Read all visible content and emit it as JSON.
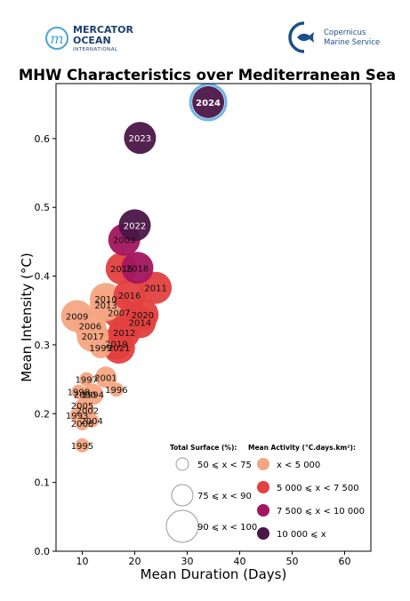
{
  "logos": {
    "left": {
      "line1": "MERCATOR",
      "line2": "OCEAN",
      "line3": "INTERNATIONAL"
    },
    "right": {
      "line1": "Copernicus",
      "line2": "Marine Service"
    }
  },
  "colors": {
    "activity_lt5000": "#f4a582",
    "activity_5000_7500": "#e3403f",
    "activity_7500_10000": "#a3155f",
    "activity_ge10000": "#4b1648",
    "highlight_ring": "#6fb7e8"
  },
  "chart_data": {
    "type": "scatter",
    "title": "MHW Characteristics over Mediterranean Sea",
    "xlabel": "Mean Duration (Days)",
    "ylabel": "Mean Intensity (°C)",
    "xlim": [
      5,
      65
    ],
    "ylim": [
      0.0,
      0.68
    ],
    "xticks": [
      "10",
      "20",
      "30",
      "40",
      "50",
      "60"
    ],
    "yticks": [
      "0.0",
      "0.1",
      "0.2",
      "0.3",
      "0.4",
      "0.5",
      "0.6"
    ],
    "grid": false,
    "legend_size": {
      "title": "Total Surface (%):",
      "entries": [
        {
          "label": "50 ⩽ x < 75",
          "surface_class": 1
        },
        {
          "label": "75 ⩽ x < 90",
          "surface_class": 2
        },
        {
          "label": "90 ⩽ x < 100",
          "surface_class": 3
        }
      ]
    },
    "legend_color": {
      "title": "Mean Activity (°C.days.km²):",
      "entries": [
        {
          "label": "x < 5 000",
          "activity_class": 1
        },
        {
          "label": "5 000 ⩽ x < 7 500",
          "activity_class": 2
        },
        {
          "label": "7 500 ⩽ x < 10 000",
          "activity_class": 3
        },
        {
          "label": "10 000 ⩽ x",
          "activity_class": 4
        }
      ]
    },
    "points": [
      {
        "year": "1993",
        "x": 9.0,
        "y": 0.198,
        "surface_class": 1,
        "activity_class": 1
      },
      {
        "year": "1994",
        "x": 12.0,
        "y": 0.228,
        "surface_class": 2,
        "activity_class": 1
      },
      {
        "year": "1995",
        "x": 10.0,
        "y": 0.154,
        "surface_class": 1,
        "activity_class": 1
      },
      {
        "year": "1996",
        "x": 16.5,
        "y": 0.235,
        "surface_class": 1,
        "activity_class": 1
      },
      {
        "year": "1997",
        "x": 10.8,
        "y": 0.25,
        "surface_class": 1,
        "activity_class": 1
      },
      {
        "year": "1998",
        "x": 9.3,
        "y": 0.232,
        "surface_class": 1,
        "activity_class": 1
      },
      {
        "year": "1999",
        "x": 13.5,
        "y": 0.296,
        "surface_class": 2,
        "activity_class": 1
      },
      {
        "year": "2000",
        "x": 10.5,
        "y": 0.228,
        "surface_class": 1,
        "activity_class": 1
      },
      {
        "year": "2001",
        "x": 14.5,
        "y": 0.253,
        "surface_class": 2,
        "activity_class": 1
      },
      {
        "year": "2002",
        "x": 11.0,
        "y": 0.205,
        "surface_class": 1,
        "activity_class": 1
      },
      {
        "year": "2003",
        "x": 18.0,
        "y": 0.453,
        "surface_class": 3,
        "activity_class": 3
      },
      {
        "year": "2004",
        "x": 11.8,
        "y": 0.19,
        "surface_class": 1,
        "activity_class": 1
      },
      {
        "year": "2005",
        "x": 10.0,
        "y": 0.212,
        "surface_class": 1,
        "activity_class": 1
      },
      {
        "year": "2006",
        "x": 11.5,
        "y": 0.328,
        "surface_class": 3,
        "activity_class": 1
      },
      {
        "year": "2007",
        "x": 17.0,
        "y": 0.347,
        "surface_class": 3,
        "activity_class": 2
      },
      {
        "year": "2008",
        "x": 10.0,
        "y": 0.186,
        "surface_class": 1,
        "activity_class": 1
      },
      {
        "year": "2009",
        "x": 9.0,
        "y": 0.342,
        "surface_class": 3,
        "activity_class": 1
      },
      {
        "year": "2010",
        "x": 14.5,
        "y": 0.367,
        "surface_class": 3,
        "activity_class": 1
      },
      {
        "year": "2011",
        "x": 24.0,
        "y": 0.383,
        "surface_class": 3,
        "activity_class": 2
      },
      {
        "year": "2012",
        "x": 18.0,
        "y": 0.318,
        "surface_class": 3,
        "activity_class": 2
      },
      {
        "year": "2013",
        "x": 14.5,
        "y": 0.358,
        "surface_class": 3,
        "activity_class": 1
      },
      {
        "year": "2014",
        "x": 21.0,
        "y": 0.333,
        "surface_class": 3,
        "activity_class": 2
      },
      {
        "year": "2015",
        "x": 17.5,
        "y": 0.411,
        "surface_class": 3,
        "activity_class": 2
      },
      {
        "year": "2016",
        "x": 19.0,
        "y": 0.372,
        "surface_class": 3,
        "activity_class": 2
      },
      {
        "year": "2017",
        "x": 12.0,
        "y": 0.313,
        "surface_class": 3,
        "activity_class": 1
      },
      {
        "year": "2018",
        "x": 20.5,
        "y": 0.412,
        "surface_class": 3,
        "activity_class": 3
      },
      {
        "year": "2019",
        "x": 16.5,
        "y": 0.302,
        "surface_class": 3,
        "activity_class": 2
      },
      {
        "year": "2020",
        "x": 21.5,
        "y": 0.344,
        "surface_class": 3,
        "activity_class": 2
      },
      {
        "year": "2021",
        "x": 17.0,
        "y": 0.296,
        "surface_class": 3,
        "activity_class": 2
      },
      {
        "year": "2022",
        "x": 20.0,
        "y": 0.474,
        "surface_class": 3,
        "activity_class": 4
      },
      {
        "year": "2023",
        "x": 21.0,
        "y": 0.601,
        "surface_class": 3,
        "activity_class": 4
      },
      {
        "year": "2024",
        "x": 34.0,
        "y": 0.653,
        "surface_class": 3,
        "activity_class": 4,
        "highlight": true
      }
    ]
  }
}
